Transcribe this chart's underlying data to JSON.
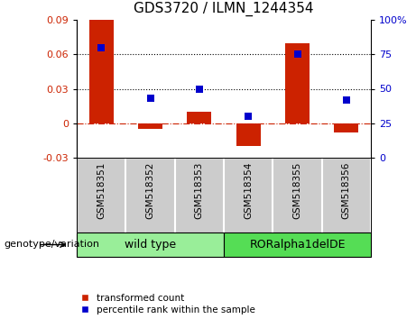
{
  "title": "GDS3720 / ILMN_1244354",
  "categories": [
    "GSM518351",
    "GSM518352",
    "GSM518353",
    "GSM518354",
    "GSM518355",
    "GSM518356"
  ],
  "red_values": [
    0.09,
    -0.005,
    0.01,
    -0.02,
    0.07,
    -0.008
  ],
  "blue_values": [
    80,
    43,
    50,
    30,
    75,
    42
  ],
  "ylim_left": [
    -0.03,
    0.09
  ],
  "ylim_right": [
    0,
    100
  ],
  "yticks_left": [
    -0.03,
    0,
    0.03,
    0.06,
    0.09
  ],
  "yticks_right": [
    0,
    25,
    50,
    75,
    100
  ],
  "hlines": [
    0.03,
    0.06
  ],
  "red_color": "#cc2200",
  "blue_color": "#0000cc",
  "bar_width": 0.5,
  "blue_marker_size": 6,
  "group1_label": "wild type",
  "group2_label": "RORalpha1delDE",
  "group1_color": "#99ee99",
  "group2_color": "#55dd55",
  "genotype_label": "genotype/variation",
  "legend1": "transformed count",
  "legend2": "percentile rank within the sample",
  "title_fontsize": 11,
  "tick_fontsize": 8,
  "cat_fontsize": 7.5,
  "group_fontsize": 9,
  "geno_fontsize": 8,
  "legend_fontsize": 7.5,
  "background_color": "#ffffff",
  "label_bg_color": "#cccccc",
  "plot_bg_color": "#ffffff"
}
